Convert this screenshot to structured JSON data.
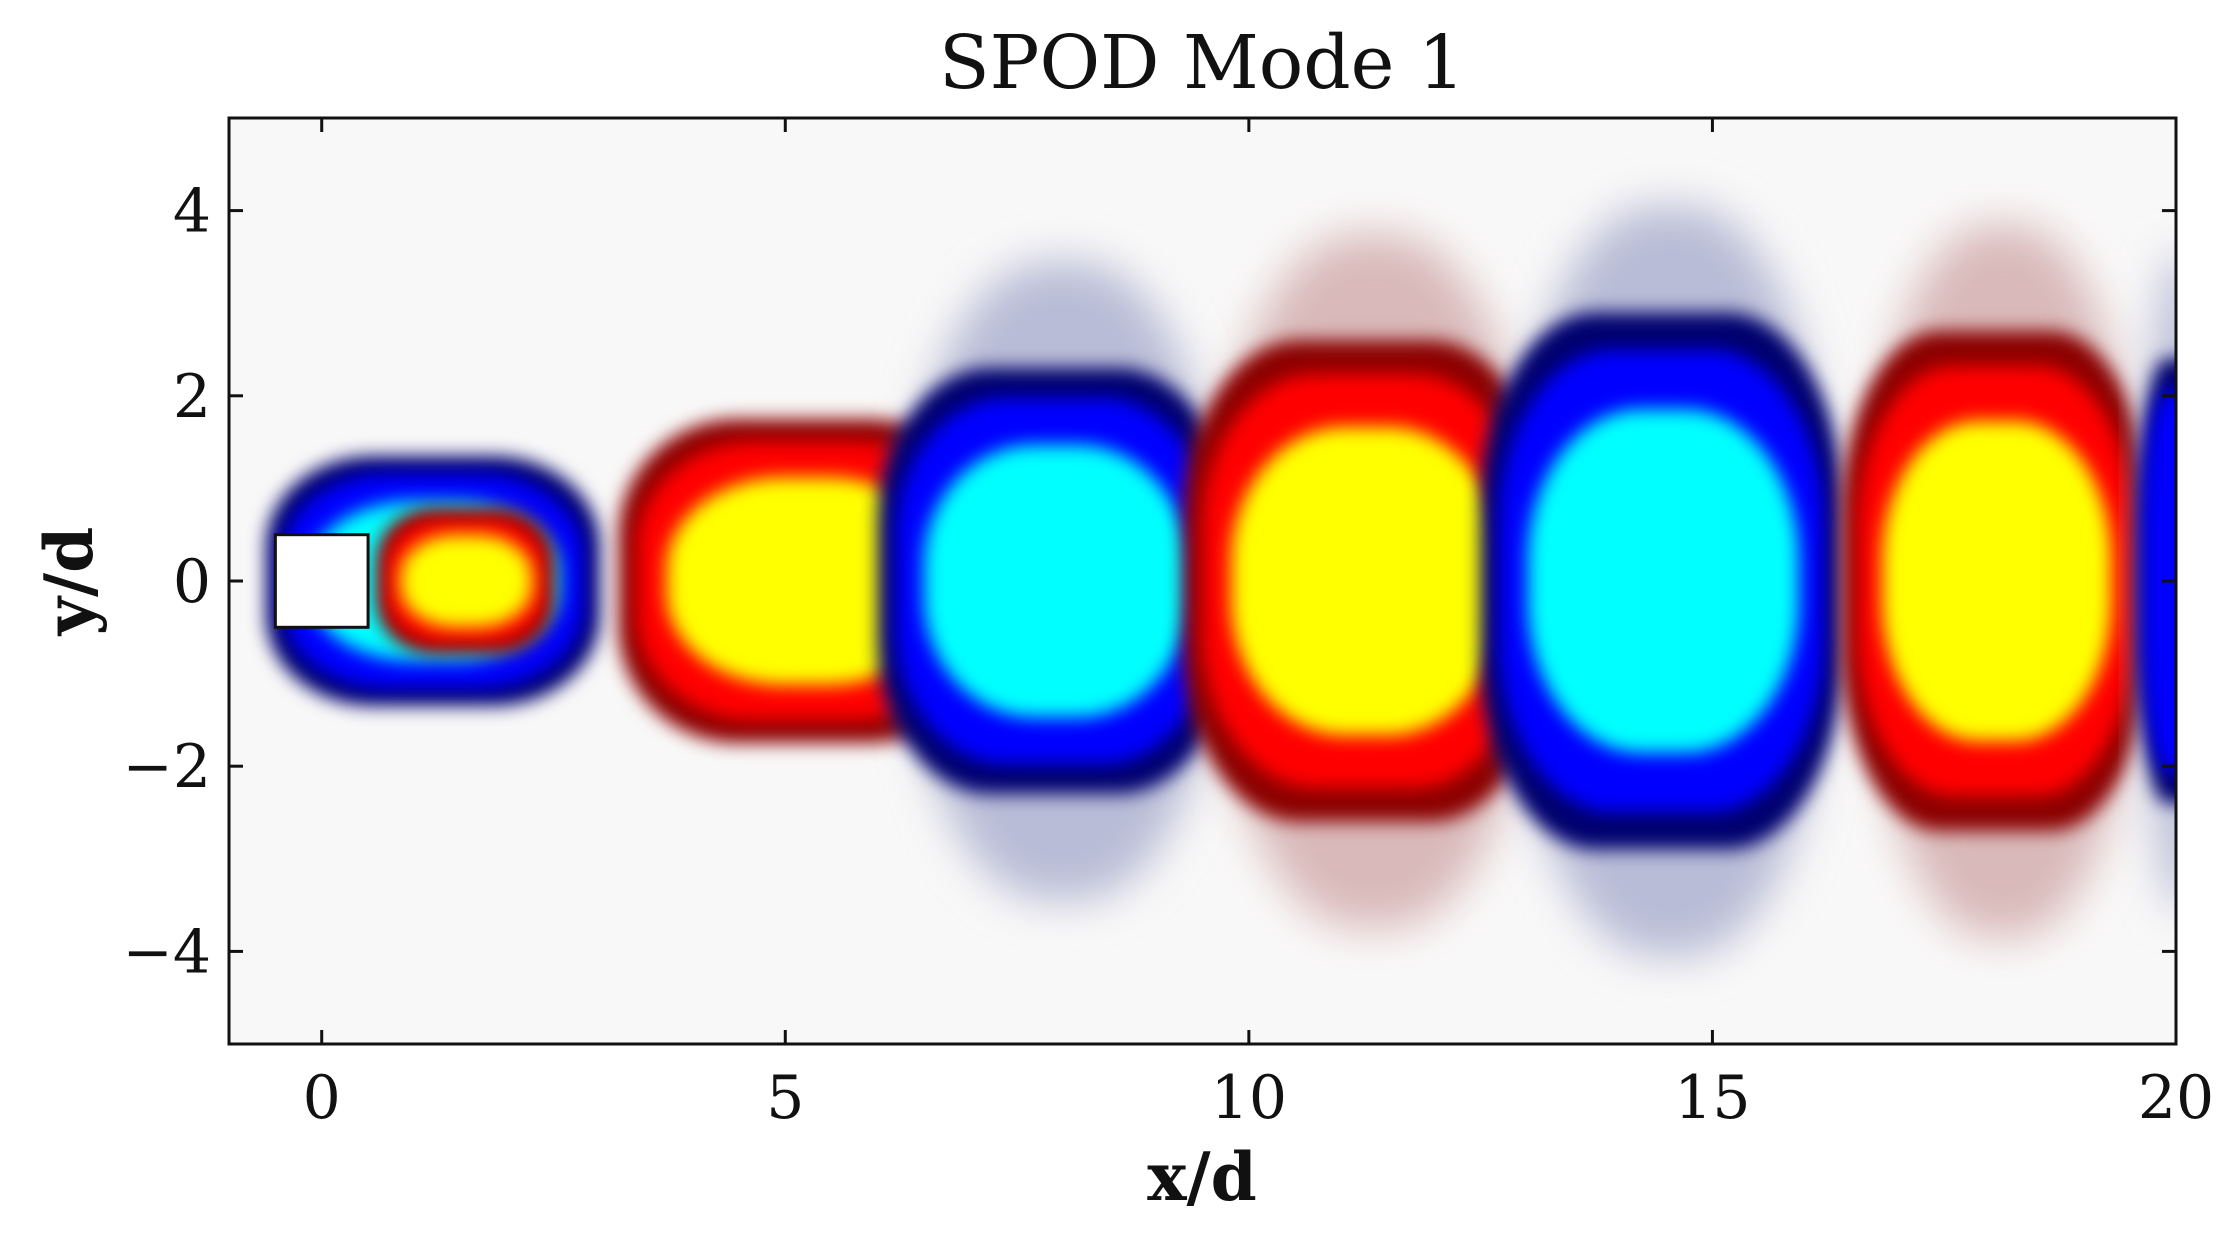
{
  "chart_data": {
    "type": "heatmap",
    "title": "SPOD Mode 1",
    "xlabel": "x/d",
    "ylabel": "y/d",
    "xlim": [
      -1,
      20
    ],
    "ylim": [
      -5,
      5
    ],
    "x_ticks": [
      0,
      5,
      10,
      15,
      20
    ],
    "x_tick_labels": [
      "0",
      "5",
      "10",
      "15",
      "20"
    ],
    "y_ticks": [
      -4,
      -2,
      0,
      2,
      4
    ],
    "y_tick_labels": [
      "−4",
      "−2",
      "0",
      "2",
      "4"
    ],
    "grid": false,
    "colors": {
      "strong_positive": "#ffff00",
      "positive": "#ff0000",
      "weak_positive": "#8b0000",
      "faint_positive": "#d9b9b9",
      "strong_negative": "#00ffff",
      "negative": "#0000ff",
      "weak_negative": "#00006e",
      "faint_negative": "#b8bcd6",
      "background": "#f9f8f8"
    },
    "obstacle": {
      "shape": "square",
      "x_range": [
        -0.5,
        0.5
      ],
      "y_range": [
        -0.5,
        0.5
      ]
    },
    "structures": [
      {
        "sign": "negative",
        "x_range": [
          -0.6,
          3.0
        ],
        "half_height": 1.35,
        "core": "strong"
      },
      {
        "sign": "positive",
        "x_range": [
          0.6,
          2.5
        ],
        "half_height": 0.78,
        "core": "strong"
      },
      {
        "sign": "positive",
        "x_range": [
          3.2,
          7.2
        ],
        "half_height": 1.75,
        "core": "strong"
      },
      {
        "sign": "negative",
        "x_range": [
          6.0,
          9.8
        ],
        "half_height": 2.3,
        "core": "strong"
      },
      {
        "sign": "positive",
        "x_range": [
          9.3,
          13.2
        ],
        "half_height": 2.6,
        "core": "strong"
      },
      {
        "sign": "negative",
        "x_range": [
          12.5,
          16.4
        ],
        "half_height": 2.9,
        "core": "strong"
      },
      {
        "sign": "positive",
        "x_range": [
          16.4,
          19.7
        ],
        "half_height": 2.7,
        "core": "strong"
      },
      {
        "sign": "negative",
        "x_range": [
          19.6,
          20.5
        ],
        "half_height": 2.4,
        "core": "weak"
      }
    ]
  }
}
